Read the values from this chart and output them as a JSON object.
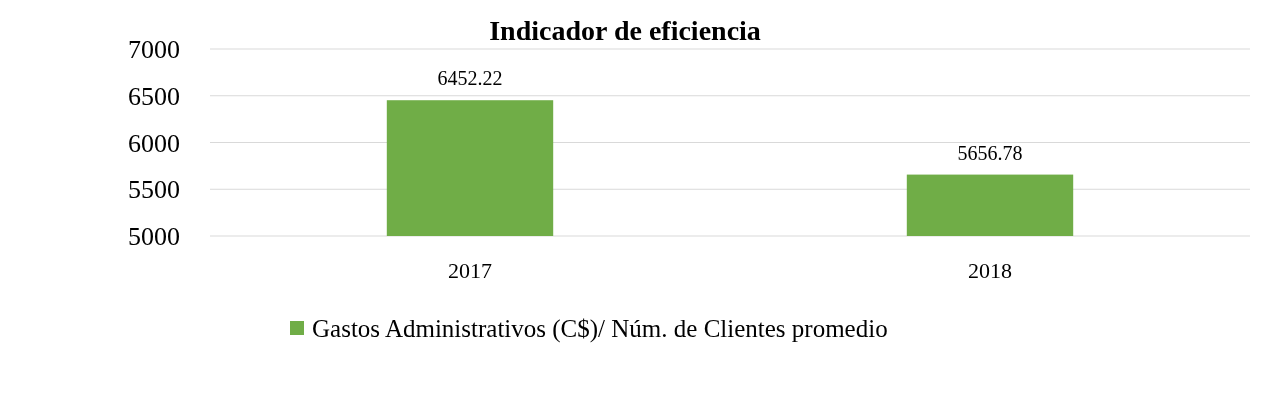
{
  "chart_data": {
    "type": "bar",
    "title": "Indicador de eficiencia",
    "categories": [
      "2017",
      "2018"
    ],
    "series": [
      {
        "name": "Gastos Administrativos (C$)/ Núm. de Clientes promedio",
        "color": "#70ad47",
        "values": [
          6452.22,
          5656.78
        ]
      }
    ],
    "ylim": [
      5000,
      7000
    ],
    "yticks": [
      5000,
      5500,
      6000,
      6500,
      7000
    ],
    "grid": "y",
    "legend": "bottom",
    "data_labels": true
  }
}
